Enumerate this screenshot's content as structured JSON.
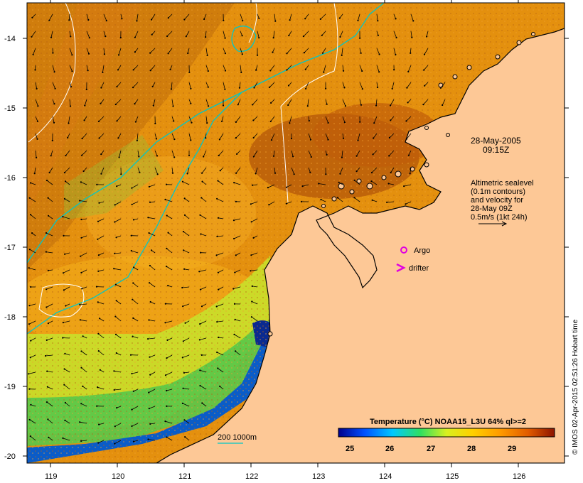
{
  "map": {
    "y_axis_labels": [
      "-14",
      "-15",
      "-16",
      "-17",
      "-18",
      "-19",
      "-20"
    ],
    "x_axis_labels": [
      "119",
      "120",
      "121",
      "122",
      "123",
      "124",
      "125",
      "126"
    ]
  },
  "annotations": {
    "date_line1": "28-May-2005",
    "date_line2": "09:15Z",
    "sealevel_line1": "Altimetric sealevel",
    "sealevel_line2": "(0.1m contours)",
    "sealevel_line3": "and velocity for",
    "sealevel_line4": "28-May 09Z",
    "sealevel_line5": "0.5m/s (1kt 24h)",
    "argo_label": "Argo",
    "drifter_label": "drifter",
    "depth_contours_label": "200  1000m"
  },
  "colorbar": {
    "title": "Temperature (°C) NOAA15_L3U 64% ql>=2",
    "ticks": [
      "25",
      "26",
      "27",
      "28",
      "29"
    ]
  },
  "credit": "© IMOS 02-Apr-2015 02:51:26 Hobart time",
  "colors": {
    "land": "#fdc896",
    "warm_sst": "#e8900a",
    "hot_sst": "#c05a08",
    "cool_sst": "#80d040",
    "cold_sst": "#0a3ab0",
    "contour_1000m": "#00c8c8",
    "sealevel_contour": "#ffffff",
    "argo_marker": "#e000e0",
    "drifter_marker": "#e000e0"
  }
}
